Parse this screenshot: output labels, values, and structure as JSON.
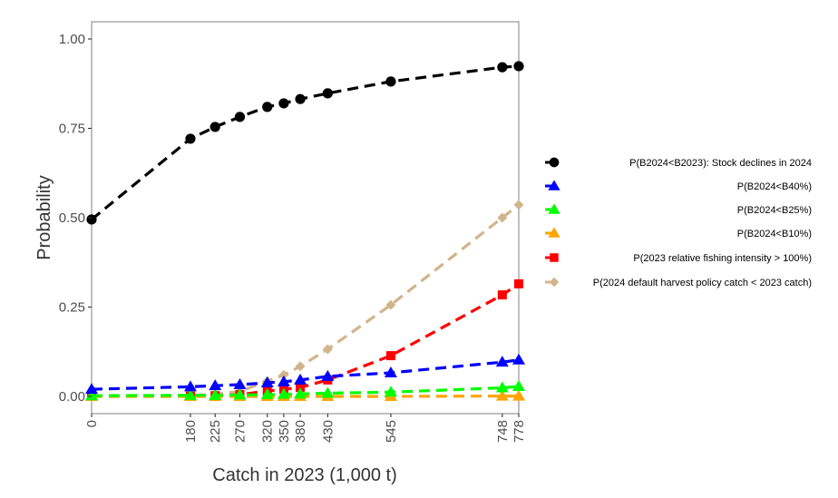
{
  "chart_data": {
    "type": "line",
    "title": "",
    "xlabel": "Catch in 2023 (1,000 t)",
    "ylabel": "Probability",
    "x": [
      0,
      180,
      225,
      270,
      320,
      350,
      380,
      430,
      545,
      748,
      778
    ],
    "x_tick_labels": [
      "0",
      "180",
      "225",
      "270",
      "320",
      "350",
      "380",
      "430",
      "545",
      "748",
      "778"
    ],
    "y_ticks": [
      0,
      0.25,
      0.5,
      0.75,
      1.0
    ],
    "y_tick_labels": [
      "0.00",
      "0.25",
      "0.50",
      "0.75",
      "1.00"
    ],
    "xlim": [
      0,
      778
    ],
    "ylim": [
      -0.05,
      1.05
    ],
    "grid": false,
    "legend_position": "right",
    "series": [
      {
        "name": "P(B2024<B2023): Stock declines in 2024",
        "color": "#000000",
        "marker": "circle",
        "values": [
          0.495,
          0.721,
          0.754,
          0.782,
          0.81,
          0.82,
          0.832,
          0.848,
          0.881,
          0.921,
          0.924
        ]
      },
      {
        "name": "P(B2024<B40%)",
        "color": "#0000ff",
        "marker": "triangle",
        "values": [
          0.02,
          0.027,
          0.03,
          0.033,
          0.038,
          0.041,
          0.046,
          0.056,
          0.066,
          0.096,
          0.102
        ]
      },
      {
        "name": "P(B2024<B25%)",
        "color": "#00ff00",
        "marker": "triangle",
        "values": [
          0.002,
          0.003,
          0.003,
          0.004,
          0.005,
          0.006,
          0.007,
          0.009,
          0.012,
          0.024,
          0.028
        ]
      },
      {
        "name": "P(B2024<B10%)",
        "color": "#ffa500",
        "marker": "triangle",
        "values": [
          0.0,
          0.0,
          0.0,
          0.0,
          0.0,
          0.0,
          0.0,
          0.0,
          0.0,
          0.001,
          0.001
        ]
      },
      {
        "name": "P(2023 relative fishing intensity > 100%)",
        "color": "#ff0000",
        "marker": "square",
        "values": [
          0.0,
          0.001,
          0.002,
          0.005,
          0.015,
          0.02,
          0.025,
          0.046,
          0.114,
          0.284,
          0.315
        ]
      },
      {
        "name": "P(2024 default harvest policy catch < 2023 catch)",
        "color": "#d2b48c",
        "marker": "diamond",
        "values": [
          0.0,
          0.003,
          0.006,
          0.014,
          0.043,
          0.06,
          0.084,
          0.132,
          0.256,
          0.5,
          0.536
        ]
      }
    ]
  }
}
